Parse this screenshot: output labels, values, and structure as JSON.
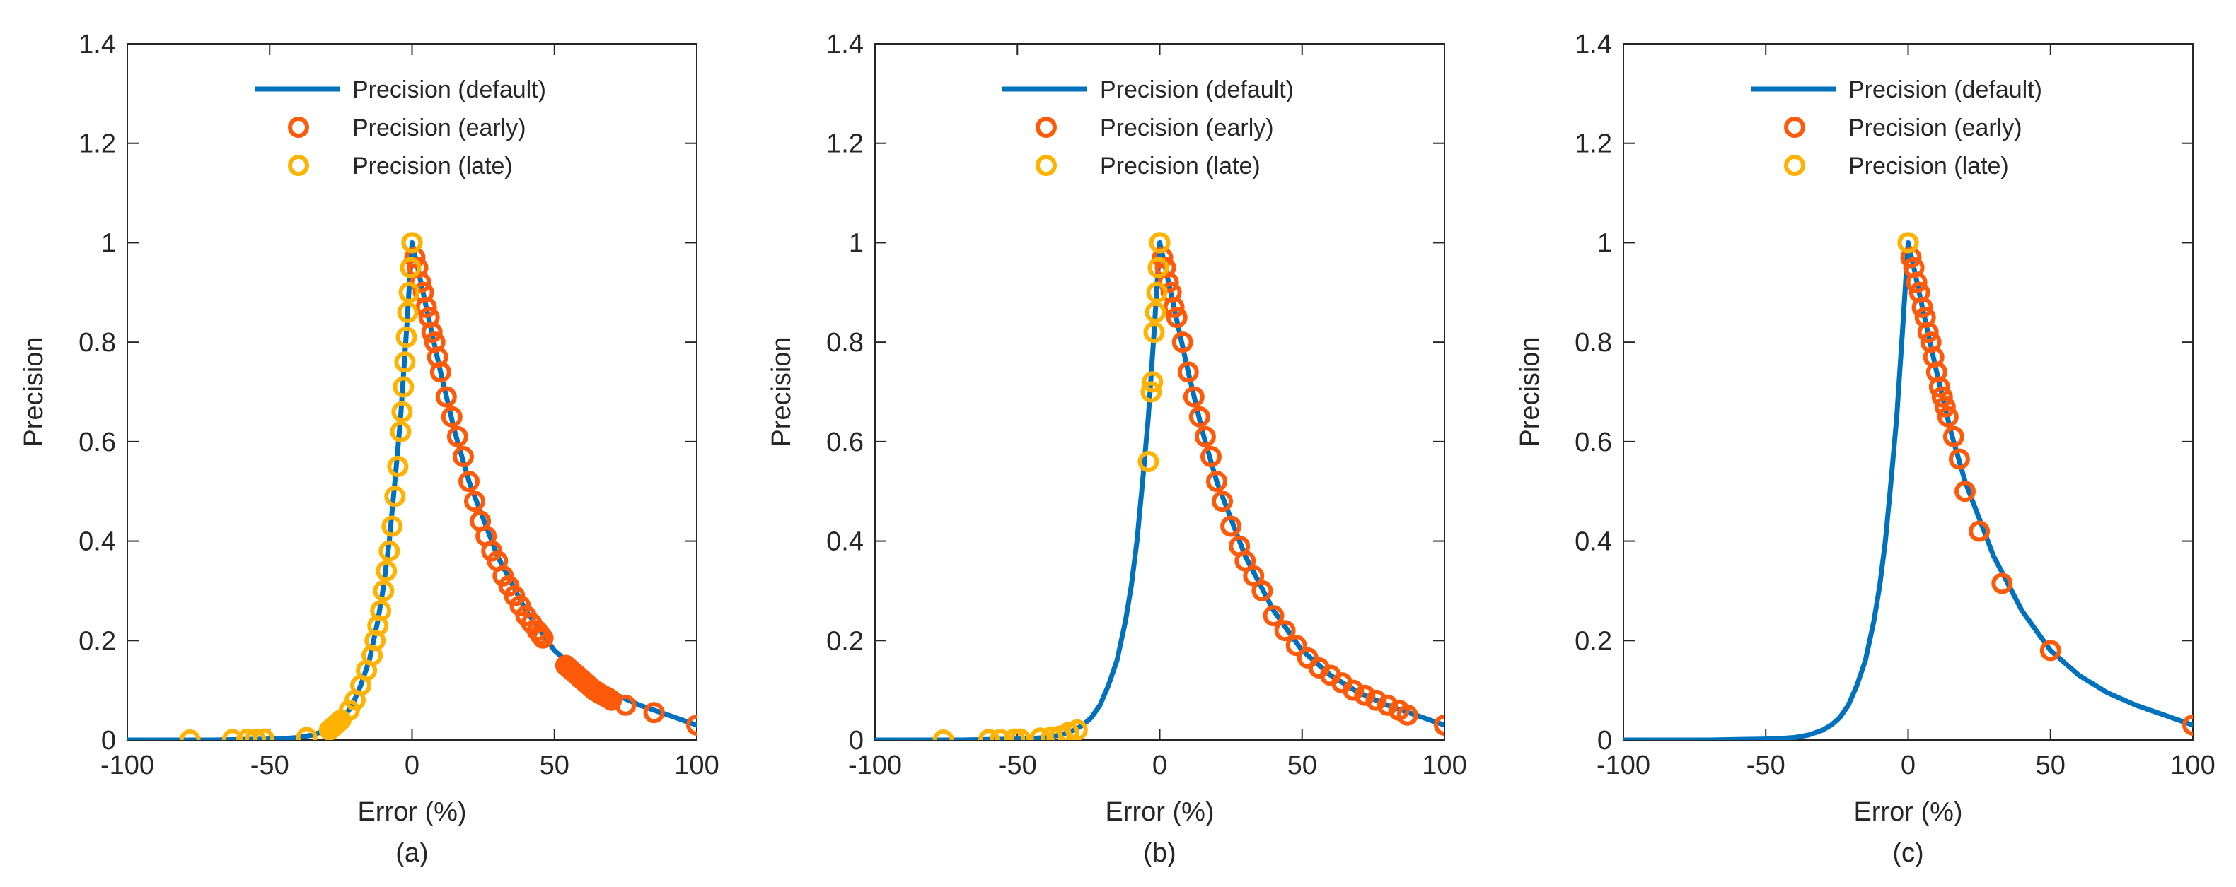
{
  "figure": {
    "colors": {
      "default": "#0072BD",
      "early": "#FF5A0A",
      "early_edge": "#E8501C",
      "late": "#FFB300",
      "axis": "#262626"
    },
    "panels": [
      {
        "label": "(a)"
      },
      {
        "label": "(b)"
      },
      {
        "label": "(c)"
      }
    ]
  },
  "chart_data": [
    {
      "type": "scatter",
      "title": "",
      "xlabel": "Error (%)",
      "ylabel": "Precision",
      "xlim": [
        -100,
        100
      ],
      "ylim": [
        0,
        1.4
      ],
      "xticks": [
        -100,
        -50,
        0,
        50,
        100
      ],
      "yticks": [
        0,
        0.2,
        0.4,
        0.6,
        0.8,
        1,
        1.2,
        1.4
      ],
      "grid": false,
      "legend_position": "top-right",
      "series": [
        {
          "name": "Precision (default)",
          "kind": "line",
          "x": [
            -100,
            -90,
            -80,
            -70,
            -60,
            -50,
            -45,
            -40,
            -35,
            -30,
            -27,
            -24,
            -21,
            -18,
            -15,
            -12,
            -10,
            -8,
            -6,
            -4,
            -2,
            0,
            2,
            5,
            10,
            15,
            20,
            30,
            40,
            50,
            60,
            70,
            80,
            90,
            100
          ],
          "y": [
            0.0,
            0.0,
            0.0,
            0.0,
            0.001,
            0.002,
            0.003,
            0.005,
            0.01,
            0.02,
            0.03,
            0.045,
            0.07,
            0.11,
            0.16,
            0.24,
            0.31,
            0.4,
            0.52,
            0.65,
            0.82,
            1.0,
            0.95,
            0.87,
            0.74,
            0.62,
            0.52,
            0.37,
            0.26,
            0.18,
            0.13,
            0.095,
            0.07,
            0.05,
            0.03
          ]
        },
        {
          "name": "Precision (early)",
          "kind": "markers",
          "x": [
            0,
            1,
            2,
            3,
            4,
            5,
            6,
            7,
            8,
            9,
            10,
            12,
            14,
            16,
            18,
            20,
            22,
            24,
            26,
            28,
            30,
            32,
            34,
            36,
            38,
            40,
            42,
            44,
            45,
            46,
            54,
            55,
            56,
            57,
            58,
            59,
            60,
            61,
            62,
            63,
            64,
            65,
            66,
            67,
            68,
            69,
            70,
            75,
            85,
            100
          ],
          "y": [
            1.0,
            0.97,
            0.95,
            0.92,
            0.9,
            0.87,
            0.85,
            0.82,
            0.8,
            0.77,
            0.74,
            0.69,
            0.65,
            0.61,
            0.57,
            0.52,
            0.48,
            0.44,
            0.41,
            0.38,
            0.36,
            0.33,
            0.31,
            0.29,
            0.27,
            0.25,
            0.235,
            0.22,
            0.212,
            0.205,
            0.15,
            0.145,
            0.14,
            0.135,
            0.13,
            0.125,
            0.12,
            0.115,
            0.11,
            0.105,
            0.1,
            0.097,
            0.093,
            0.09,
            0.087,
            0.084,
            0.08,
            0.07,
            0.055,
            0.03
          ]
        },
        {
          "name": "Precision (late)",
          "kind": "markers",
          "x": [
            -78,
            -63,
            -58,
            -55,
            -52,
            -37,
            -29,
            -28,
            -27,
            -26,
            -25,
            -22,
            -20,
            -18,
            -16,
            -14,
            -13,
            -12,
            -11,
            -10,
            -9,
            -8,
            -7,
            -6,
            -5,
            -4,
            -3.5,
            -3,
            -2.5,
            -2,
            -1.5,
            -1,
            -0.5,
            0
          ],
          "y": [
            0.0,
            0.001,
            0.001,
            0.001,
            0.002,
            0.005,
            0.02,
            0.025,
            0.03,
            0.035,
            0.04,
            0.06,
            0.08,
            0.11,
            0.14,
            0.17,
            0.2,
            0.23,
            0.26,
            0.3,
            0.34,
            0.38,
            0.43,
            0.49,
            0.55,
            0.62,
            0.66,
            0.71,
            0.76,
            0.81,
            0.86,
            0.9,
            0.95,
            1.0
          ]
        }
      ]
    },
    {
      "type": "scatter",
      "title": "",
      "xlabel": "Error (%)",
      "ylabel": "Precision",
      "xlim": [
        -100,
        100
      ],
      "ylim": [
        0,
        1.4
      ],
      "xticks": [
        -100,
        -50,
        0,
        50,
        100
      ],
      "yticks": [
        0,
        0.2,
        0.4,
        0.6,
        0.8,
        1,
        1.2,
        1.4
      ],
      "grid": false,
      "legend_position": "top-right",
      "series": [
        {
          "name": "Precision (default)",
          "kind": "line",
          "x": [
            -100,
            -90,
            -80,
            -70,
            -60,
            -50,
            -45,
            -40,
            -35,
            -30,
            -27,
            -24,
            -21,
            -18,
            -15,
            -12,
            -10,
            -8,
            -6,
            -4,
            -2,
            0,
            2,
            5,
            10,
            15,
            20,
            30,
            40,
            50,
            60,
            70,
            80,
            90,
            100
          ],
          "y": [
            0.0,
            0.0,
            0.0,
            0.0,
            0.001,
            0.002,
            0.003,
            0.005,
            0.01,
            0.02,
            0.03,
            0.045,
            0.07,
            0.11,
            0.16,
            0.24,
            0.31,
            0.4,
            0.52,
            0.65,
            0.82,
            1.0,
            0.95,
            0.87,
            0.74,
            0.62,
            0.52,
            0.37,
            0.26,
            0.18,
            0.13,
            0.095,
            0.07,
            0.05,
            0.03
          ]
        },
        {
          "name": "Precision (early)",
          "kind": "markers",
          "x": [
            0,
            1,
            2,
            3,
            4,
            5,
            6,
            8,
            10,
            12,
            14,
            16,
            18,
            20,
            22,
            25,
            28,
            30,
            33,
            36,
            40,
            44,
            48,
            52,
            56,
            60,
            64,
            68,
            72,
            76,
            80,
            84,
            87,
            100
          ],
          "y": [
            1.0,
            0.97,
            0.95,
            0.92,
            0.9,
            0.87,
            0.85,
            0.8,
            0.74,
            0.69,
            0.65,
            0.61,
            0.57,
            0.52,
            0.48,
            0.43,
            0.39,
            0.36,
            0.33,
            0.3,
            0.25,
            0.22,
            0.19,
            0.165,
            0.145,
            0.13,
            0.115,
            0.1,
            0.09,
            0.08,
            0.07,
            0.06,
            0.05,
            0.03
          ]
        },
        {
          "name": "Precision (late)",
          "kind": "markers",
          "x": [
            -76,
            -60,
            -56,
            -51,
            -49,
            -42,
            -38,
            -35,
            -32,
            -29,
            -4,
            -3,
            -2.5,
            -2,
            -1.5,
            -1,
            -0.5,
            0
          ],
          "y": [
            0.0,
            0.001,
            0.001,
            0.002,
            0.002,
            0.004,
            0.006,
            0.008,
            0.015,
            0.02,
            0.56,
            0.7,
            0.72,
            0.82,
            0.86,
            0.9,
            0.95,
            1.0
          ]
        }
      ]
    },
    {
      "type": "scatter",
      "title": "",
      "xlabel": "Error (%)",
      "ylabel": "Precision",
      "xlim": [
        -100,
        100
      ],
      "ylim": [
        0,
        1.4
      ],
      "xticks": [
        -100,
        -50,
        0,
        50,
        100
      ],
      "yticks": [
        0,
        0.2,
        0.4,
        0.6,
        0.8,
        1,
        1.2,
        1.4
      ],
      "grid": false,
      "legend_position": "top-right",
      "series": [
        {
          "name": "Precision (default)",
          "kind": "line",
          "x": [
            -100,
            -90,
            -80,
            -70,
            -60,
            -50,
            -45,
            -40,
            -35,
            -30,
            -27,
            -24,
            -21,
            -18,
            -15,
            -12,
            -10,
            -8,
            -6,
            -4,
            -2,
            0,
            2,
            5,
            10,
            15,
            20,
            30,
            40,
            50,
            60,
            70,
            80,
            90,
            100
          ],
          "y": [
            0.0,
            0.0,
            0.0,
            0.0,
            0.001,
            0.002,
            0.003,
            0.005,
            0.01,
            0.02,
            0.03,
            0.045,
            0.07,
            0.11,
            0.16,
            0.24,
            0.31,
            0.4,
            0.52,
            0.65,
            0.82,
            1.0,
            0.95,
            0.87,
            0.74,
            0.62,
            0.52,
            0.37,
            0.26,
            0.18,
            0.13,
            0.095,
            0.07,
            0.05,
            0.03
          ]
        },
        {
          "name": "Precision (early)",
          "kind": "markers",
          "x": [
            0,
            1,
            2,
            3,
            4,
            5,
            6,
            7,
            8,
            9,
            10,
            11,
            12,
            13,
            14,
            16,
            18,
            20,
            25,
            33,
            50,
            100
          ],
          "y": [
            1.0,
            0.97,
            0.95,
            0.92,
            0.9,
            0.87,
            0.85,
            0.82,
            0.8,
            0.77,
            0.74,
            0.71,
            0.69,
            0.67,
            0.65,
            0.61,
            0.565,
            0.5,
            0.42,
            0.315,
            0.18,
            0.03
          ]
        },
        {
          "name": "Precision (late)",
          "kind": "markers",
          "x": [
            0
          ],
          "y": [
            1.0
          ]
        }
      ]
    }
  ]
}
